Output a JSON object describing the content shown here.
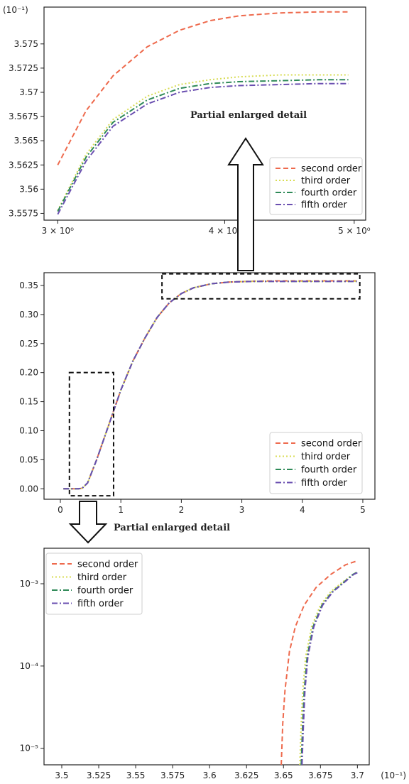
{
  "annotation_text": "Partial enlarged detail",
  "colors": {
    "second order": "#ee6a4d",
    "third order": "#d8dc55",
    "fourth order": "#2f8a58",
    "fifth order": "#6a4fb0"
  },
  "chart_data": [
    {
      "id": "top",
      "type": "line",
      "title": "",
      "xlabel": "",
      "ylabel": "",
      "xscale": "log",
      "xlim": [
        2.93,
        5.1
      ],
      "ylim": [
        3.5568,
        3.5788
      ],
      "offset_label": "(10⁻¹)",
      "yticks": [
        {
          "v": 3.5575,
          "label": "3.5575"
        },
        {
          "v": 3.56,
          "label": "3.56"
        },
        {
          "v": 3.5625,
          "label": "3.5625"
        },
        {
          "v": 3.565,
          "label": "3.565"
        },
        {
          "v": 3.5675,
          "label": "3.5675"
        },
        {
          "v": 3.57,
          "label": "3.57"
        },
        {
          "v": 3.5725,
          "label": "3.5725"
        },
        {
          "v": 3.575,
          "label": "3.575"
        }
      ],
      "xticks": [
        {
          "v": 3,
          "label": "3 × 10⁰"
        },
        {
          "v": 4,
          "label": "4 × 10⁰"
        },
        {
          "v": 5,
          "label": "5 × 10⁰"
        }
      ],
      "legend_position": "lower-right",
      "series": [
        {
          "name": "second order",
          "x": [
            3,
            3.15,
            3.3,
            3.5,
            3.7,
            3.9,
            4.1,
            4.4,
            4.7,
            4.95
          ],
          "y": [
            3.5625,
            3.5681,
            3.5717,
            3.5747,
            3.5764,
            3.5774,
            3.5779,
            3.5782,
            3.5783,
            3.5783
          ]
        },
        {
          "name": "third order",
          "x": [
            3,
            3.15,
            3.3,
            3.5,
            3.7,
            3.9,
            4.1,
            4.4,
            4.7,
            4.95
          ],
          "y": [
            3.5578,
            3.5636,
            3.5672,
            3.5696,
            3.5708,
            3.5713,
            3.5716,
            3.5718,
            3.5718,
            3.5718
          ]
        },
        {
          "name": "fourth order",
          "x": [
            3,
            3.15,
            3.3,
            3.5,
            3.7,
            3.9,
            4.1,
            4.4,
            4.7,
            4.95
          ],
          "y": [
            3.5577,
            3.5633,
            3.5669,
            3.5692,
            3.5704,
            3.5709,
            3.5711,
            3.5712,
            3.5713,
            3.5713
          ]
        },
        {
          "name": "fifth order",
          "x": [
            3,
            3.15,
            3.3,
            3.5,
            3.7,
            3.9,
            4.1,
            4.4,
            4.7,
            4.95
          ],
          "y": [
            3.5574,
            3.5629,
            3.5665,
            3.5688,
            3.57,
            3.5705,
            3.5707,
            3.5708,
            3.5709,
            3.5709
          ]
        }
      ]
    },
    {
      "id": "middle",
      "type": "line",
      "title": "",
      "xlabel": "",
      "ylabel": "",
      "xlim": [
        -0.27,
        5.2
      ],
      "ylim": [
        -0.018,
        0.372
      ],
      "yticks": [
        {
          "v": 0,
          "label": "0.00"
        },
        {
          "v": 0.05,
          "label": "0.05"
        },
        {
          "v": 0.1,
          "label": "0.10"
        },
        {
          "v": 0.15,
          "label": "0.15"
        },
        {
          "v": 0.2,
          "label": "0.20"
        },
        {
          "v": 0.25,
          "label": "0.25"
        },
        {
          "v": 0.3,
          "label": "0.30"
        },
        {
          "v": 0.35,
          "label": "0.35"
        }
      ],
      "xticks": [
        {
          "v": 0,
          "label": "0"
        },
        {
          "v": 1,
          "label": "1"
        },
        {
          "v": 2,
          "label": "2"
        },
        {
          "v": 3,
          "label": "3"
        },
        {
          "v": 4,
          "label": "4"
        },
        {
          "v": 5,
          "label": "5"
        }
      ],
      "legend_position": "lower-right",
      "series": [
        {
          "name": "second order",
          "x": [
            0.05,
            0.3,
            0.36,
            0.45,
            0.6,
            0.8,
            1.0,
            1.2,
            1.4,
            1.6,
            1.8,
            2.0,
            2.2,
            2.5,
            2.8,
            3.2,
            3.6,
            4.0,
            4.5,
            4.9
          ],
          "y": [
            0,
            0,
            0.001,
            0.01,
            0.05,
            0.11,
            0.17,
            0.22,
            0.26,
            0.295,
            0.32,
            0.336,
            0.346,
            0.353,
            0.356,
            0.3575,
            0.358,
            0.358,
            0.358,
            0.358
          ]
        },
        {
          "name": "third order",
          "x": [
            0.05,
            0.3,
            0.36,
            0.45,
            0.6,
            0.8,
            1.0,
            1.2,
            1.4,
            1.6,
            1.8,
            2.0,
            2.2,
            2.5,
            2.8,
            3.2,
            3.6,
            4.0,
            4.5,
            4.9
          ],
          "y": [
            0,
            0,
            0.001,
            0.01,
            0.05,
            0.11,
            0.17,
            0.22,
            0.26,
            0.295,
            0.32,
            0.336,
            0.346,
            0.353,
            0.356,
            0.3571,
            0.3572,
            0.3572,
            0.3572,
            0.3572
          ]
        },
        {
          "name": "fourth order",
          "x": [
            0.05,
            0.3,
            0.36,
            0.45,
            0.6,
            0.8,
            1.0,
            1.2,
            1.4,
            1.6,
            1.8,
            2.0,
            2.2,
            2.5,
            2.8,
            3.2,
            3.6,
            4.0,
            4.5,
            4.9
          ],
          "y": [
            0,
            0,
            0.001,
            0.01,
            0.05,
            0.11,
            0.17,
            0.22,
            0.26,
            0.295,
            0.32,
            0.336,
            0.346,
            0.353,
            0.356,
            0.3571,
            0.3571,
            0.3571,
            0.3571,
            0.3571
          ]
        },
        {
          "name": "fifth order",
          "x": [
            0.05,
            0.3,
            0.36,
            0.45,
            0.6,
            0.8,
            1.0,
            1.2,
            1.4,
            1.6,
            1.8,
            2.0,
            2.2,
            2.5,
            2.8,
            3.2,
            3.6,
            4.0,
            4.5,
            4.9
          ],
          "y": [
            0,
            0,
            0.001,
            0.01,
            0.05,
            0.11,
            0.17,
            0.22,
            0.26,
            0.295,
            0.32,
            0.336,
            0.346,
            0.353,
            0.356,
            0.357,
            0.3571,
            0.3571,
            0.3571,
            0.3571
          ]
        }
      ],
      "highlight_boxes": [
        {
          "x0": 0.15,
          "x1": 0.88,
          "y0": -0.012,
          "y1": 0.2
        },
        {
          "x0": 1.68,
          "x1": 4.95,
          "y0": 0.327,
          "y1": 0.37
        }
      ]
    },
    {
      "id": "bottom",
      "type": "line",
      "title": "",
      "xlabel": "",
      "ylabel": "",
      "yscale": "log",
      "xlim": [
        3.488,
        3.708
      ],
      "ylim": [
        6.3e-06,
        0.0027
      ],
      "offset_label": "(10⁻¹)",
      "xticks": [
        {
          "v": 3.5,
          "label": "3.5"
        },
        {
          "v": 3.525,
          "label": "3.525"
        },
        {
          "v": 3.55,
          "label": "3.55"
        },
        {
          "v": 3.575,
          "label": "3.575"
        },
        {
          "v": 3.6,
          "label": "3.6"
        },
        {
          "v": 3.625,
          "label": "3.625"
        },
        {
          "v": 3.65,
          "label": "3.65"
        },
        {
          "v": 3.675,
          "label": "3.675"
        },
        {
          "v": 3.7,
          "label": "3.7"
        }
      ],
      "yticks": [
        {
          "v": 1e-05,
          "label": "10⁻⁵"
        },
        {
          "v": 0.0001,
          "label": "10⁻⁴"
        },
        {
          "v": 0.001,
          "label": "10⁻³"
        }
      ],
      "legend_position": "upper-left",
      "series": [
        {
          "name": "second order",
          "x": [
            3.6485,
            3.6495,
            3.651,
            3.654,
            3.658,
            3.664,
            3.672,
            3.682,
            3.692,
            3.7
          ],
          "y": [
            6.3e-06,
            2e-05,
            5e-05,
            0.00015,
            0.0003,
            0.00055,
            0.0009,
            0.0013,
            0.0017,
            0.0019
          ]
        },
        {
          "name": "third order",
          "x": [
            3.661,
            3.662,
            3.663,
            3.665,
            3.669,
            3.675,
            3.682,
            3.69,
            3.697,
            3.7
          ],
          "y": [
            6.3e-06,
            2e-05,
            5e-05,
            0.00013,
            0.0003,
            0.00055,
            0.0008,
            0.00105,
            0.0013,
            0.0014
          ]
        },
        {
          "name": "fourth order",
          "x": [
            3.662,
            3.663,
            3.664,
            3.666,
            3.67,
            3.676,
            3.683,
            3.691,
            3.697,
            3.7
          ],
          "y": [
            6.3e-06,
            2e-05,
            5e-05,
            0.00013,
            0.0003,
            0.00055,
            0.0008,
            0.00105,
            0.0013,
            0.00138
          ]
        },
        {
          "name": "fifth order",
          "x": [
            3.6625,
            3.6635,
            3.6645,
            3.6665,
            3.6705,
            3.6765,
            3.6835,
            3.6915,
            3.6975,
            3.7
          ],
          "y": [
            6.3e-06,
            2e-05,
            5e-05,
            0.00013,
            0.0003,
            0.00055,
            0.0008,
            0.00105,
            0.0013,
            0.00136
          ]
        }
      ]
    }
  ]
}
